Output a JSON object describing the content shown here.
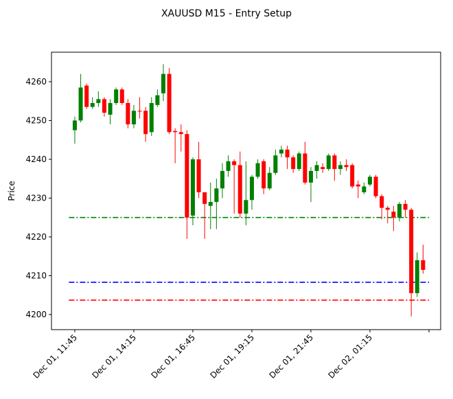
{
  "chart_data": {
    "type": "candlestick",
    "title": "XAUUSD M15 - Entry Setup",
    "y_label": "Price",
    "open": [
      4247.5,
      4250,
      4259,
      4253.5,
      4254.5,
      4255.5,
      4251.5,
      4254.5,
      4258,
      4254.5,
      4249,
      4252.5,
      4252.5,
      4247,
      4254,
      4257,
      4262,
      4247.3,
      4247,
      4246.5,
      4225.5,
      4240,
      4231.5,
      4228,
      4229,
      4232.5,
      4237,
      4239.5,
      4238.5,
      4226,
      4229.5,
      4235.5,
      4239.5,
      4232.5,
      4236.5,
      4241.5,
      4242.5,
      4240.5,
      4237.5,
      4241.5,
      4234,
      4237,
      4238,
      4237.5,
      4241,
      4237.5,
      4238.5,
      4238.5,
      4233.5,
      4231.5,
      4233.5,
      4235.5,
      4230.5,
      4227.5,
      4226.5,
      4225,
      4228.5,
      4227,
      4205.5,
      4214
    ],
    "high": [
      4251,
      4262,
      4259.5,
      4256,
      4257.5,
      4256,
      4255.5,
      4258.5,
      4258.5,
      4255.5,
      4254,
      4256,
      4253.5,
      4256,
      4258,
      4264.5,
      4263.5,
      4248,
      4249,
      4247.5,
      4240.5,
      4244.5,
      4231.5,
      4234,
      4235,
      4239,
      4241,
      4240,
      4242,
      4239.5,
      4236,
      4240,
      4240,
      4238,
      4242.5,
      4243.5,
      4243.5,
      4241,
      4242,
      4244.5,
      4238,
      4239.5,
      4239,
      4241.5,
      4241.5,
      4239.5,
      4240,
      4239,
      4234.5,
      4234,
      4236,
      4236,
      4231,
      4228,
      4228,
      4229,
      4229.5,
      4227.5,
      4216,
      4218
    ],
    "low": [
      4244,
      4249.5,
      4253,
      4253,
      4253.5,
      4251,
      4249,
      4254,
      4254,
      4248,
      4248,
      4250.5,
      4244.5,
      4246,
      4253.5,
      4255,
      4246.5,
      4239,
      4242,
      4219.5,
      4223,
      4230,
      4219.5,
      4222,
      4222,
      4230,
      4235.5,
      4226,
      4225,
      4223,
      4227,
      4235,
      4231,
      4232,
      4236,
      4240.5,
      4237.5,
      4236.5,
      4237,
      4233.5,
      4229,
      4235,
      4236.5,
      4237,
      4234.5,
      4236,
      4237,
      4232.5,
      4230,
      4231,
      4233,
      4230,
      4224.5,
      4223.5,
      4221.5,
      4224,
      4225,
      4199.5,
      4204.5,
      4210.5
    ],
    "close": [
      4250,
      4258.5,
      4253.5,
      4254.5,
      4255.5,
      4252,
      4254.5,
      4258,
      4254.5,
      4249,
      4252.5,
      4252.3,
      4246.5,
      4254.5,
      4256.5,
      4262,
      4247,
      4247,
      4246.5,
      4225,
      4240,
      4231.5,
      4228.5,
      4229,
      4232.5,
      4237,
      4239.5,
      4238.5,
      4226,
      4229.5,
      4235.5,
      4239,
      4232.5,
      4236.5,
      4241,
      4242.5,
      4240.5,
      4237.5,
      4241.5,
      4234,
      4237,
      4238.5,
      4237.5,
      4241,
      4237.5,
      4238.5,
      4238,
      4233,
      4233,
      4233,
      4235.5,
      4230.5,
      4227.5,
      4227,
      4225,
      4228.5,
      4227,
      4205.5,
      4214,
      4211.5
    ],
    "up_color": "#008000",
    "down_color": "#ff0000",
    "hlines": [
      {
        "value": 4225,
        "color": "#008000"
      },
      {
        "value": 4208.3,
        "color": "#0000ff"
      },
      {
        "value": 4203.7,
        "color": "#ff0000"
      }
    ],
    "xlim": [
      -3.95,
      61.98
    ],
    "xticks": [
      {
        "value": 0,
        "label": "Dec 01, 11:45"
      },
      {
        "value": 10,
        "label": "Dec 01, 14:15"
      },
      {
        "value": 20,
        "label": "Dec 01, 16:45"
      },
      {
        "value": 30,
        "label": "Dec 01, 19:15"
      },
      {
        "value": 40,
        "label": "Dec 01, 21:45"
      },
      {
        "value": 50,
        "label": "Dec 02, 01:15"
      },
      {
        "value": 60,
        "label": null
      }
    ],
    "ylim": [
      4196.1,
      4267.6
    ],
    "yticks": [
      4200,
      4210,
      4220,
      4230,
      4240,
      4250,
      4260
    ]
  }
}
